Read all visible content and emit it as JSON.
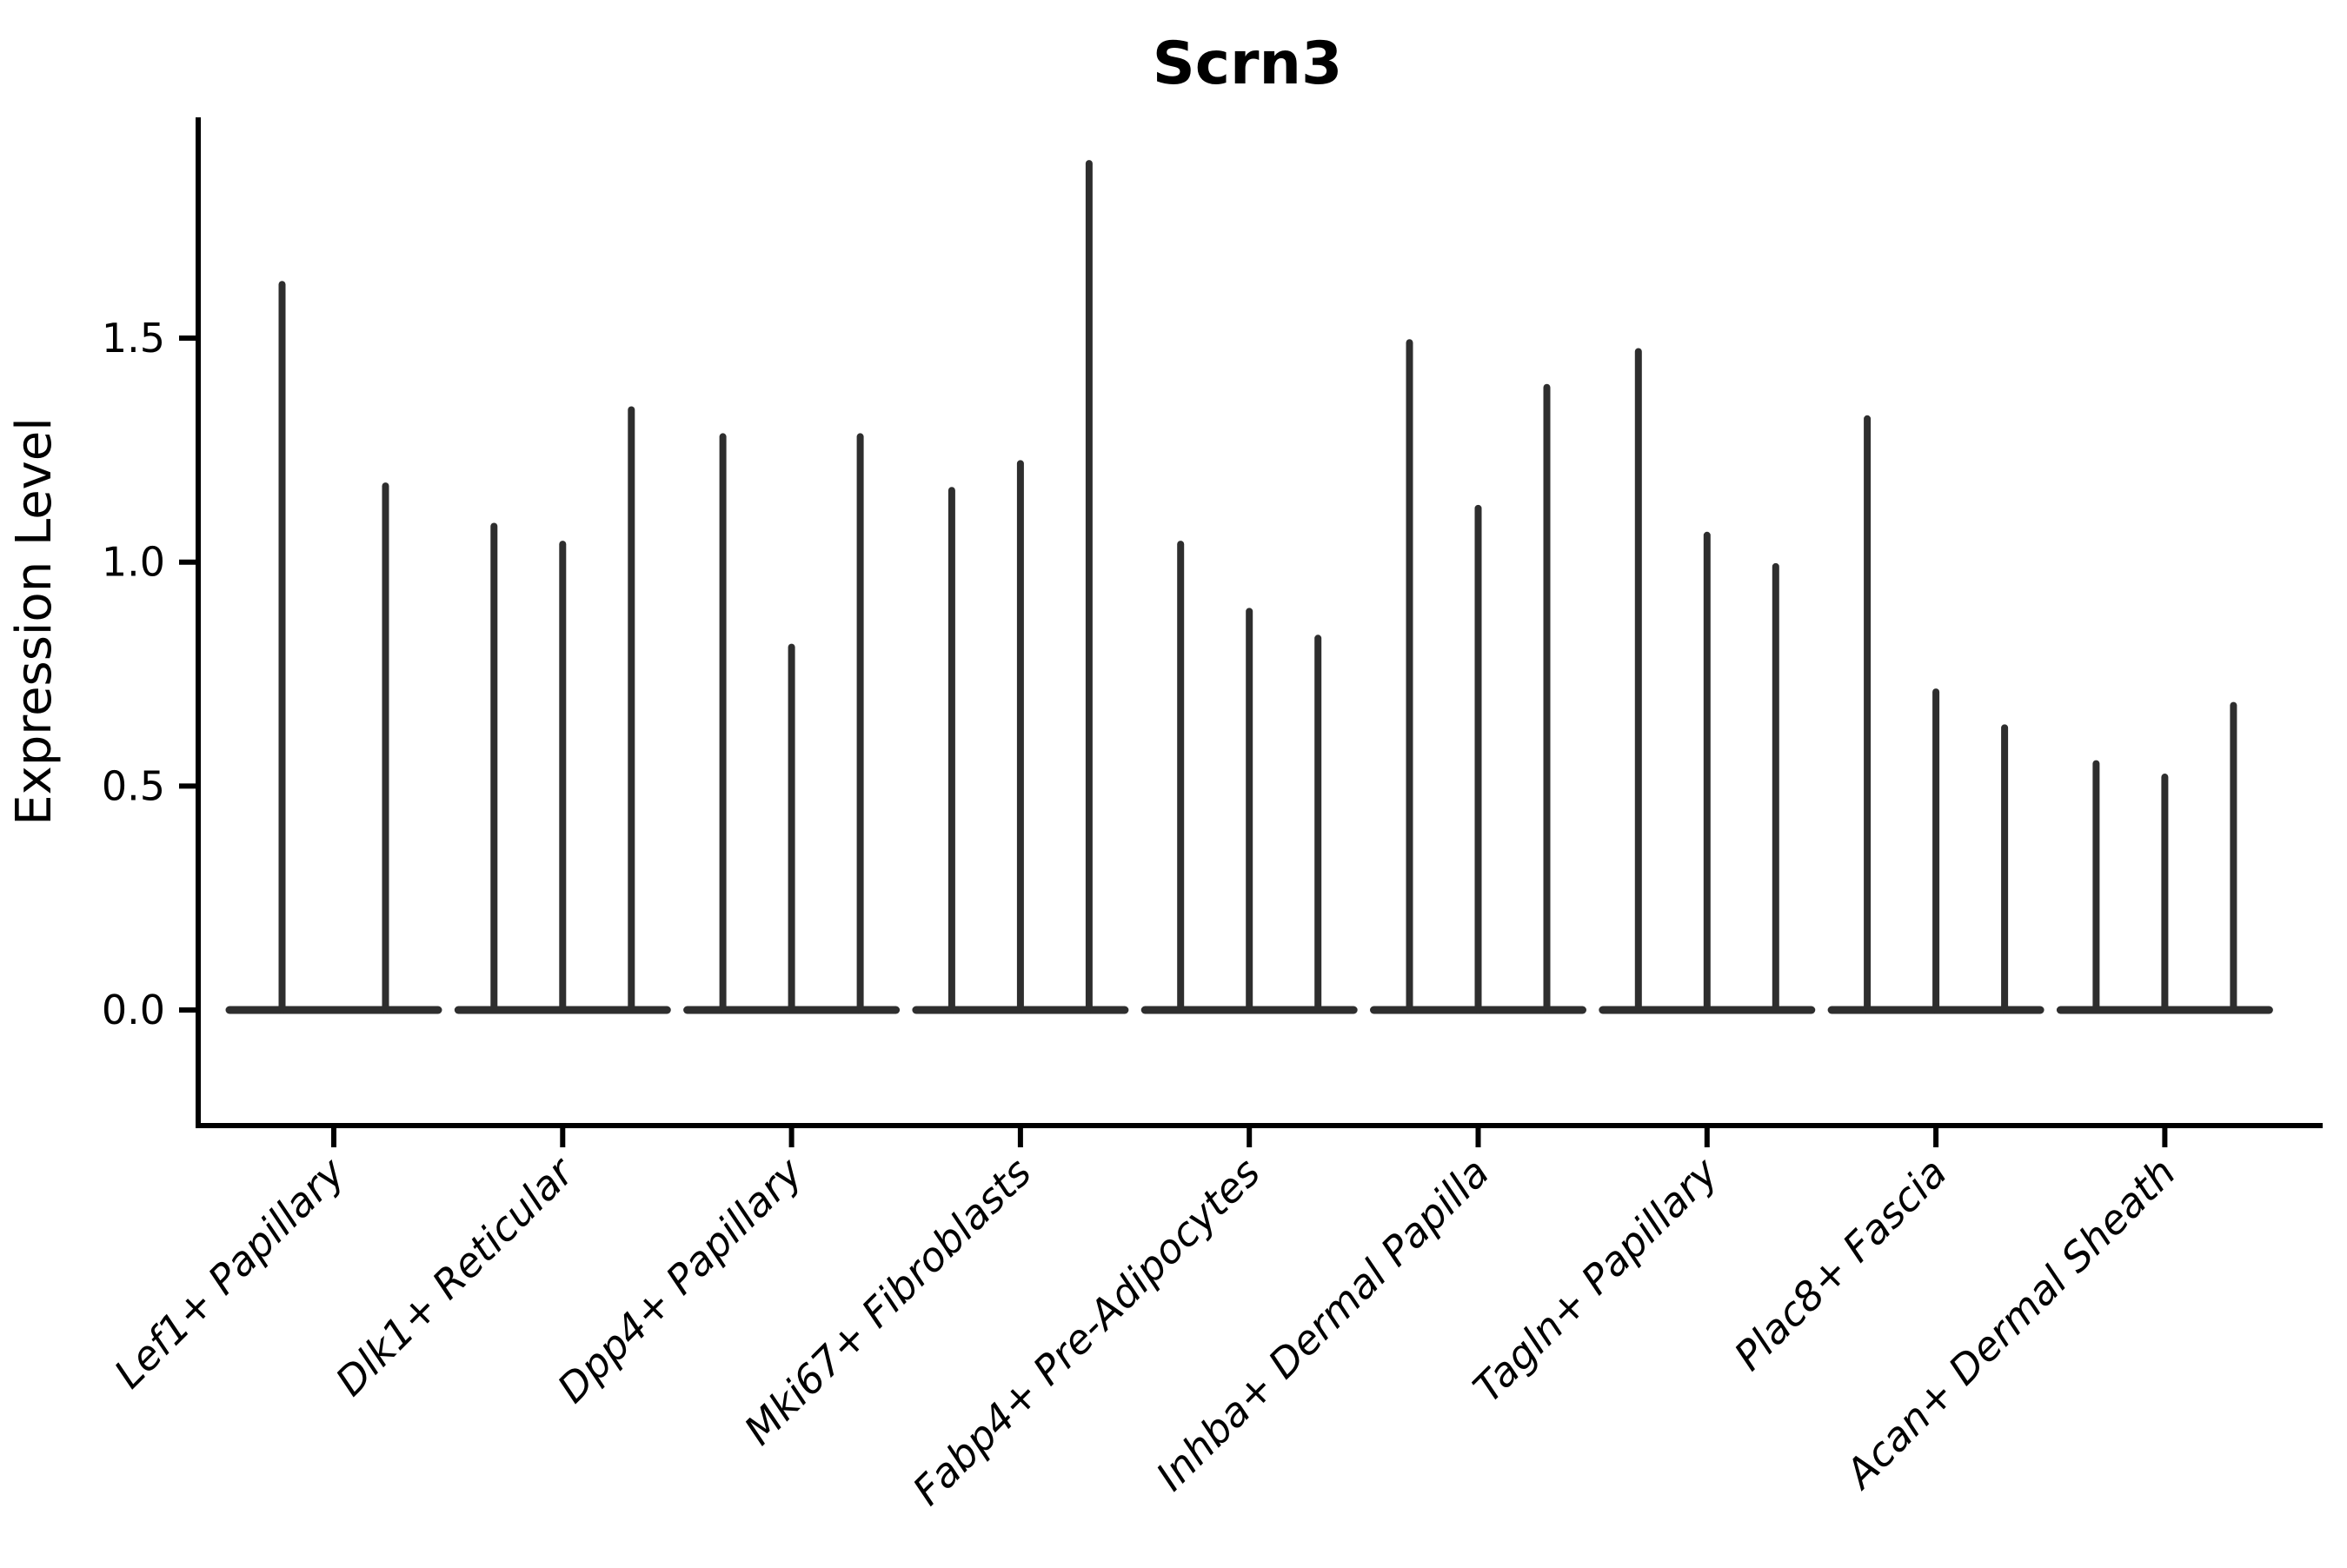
{
  "chart_data": {
    "type": "violin",
    "title": "Scrn3",
    "xlabel": "",
    "ylabel": "Expression Level",
    "ytick_labels": [
      "0.0",
      "0.5",
      "1.0",
      "1.5"
    ],
    "ytick_values": [
      0.0,
      0.5,
      1.0,
      1.5
    ],
    "ylim": [
      -0.26,
      2.0
    ],
    "grid": false,
    "legend": "none",
    "categories": [
      "Lef1+ Papillary",
      "Dlk1+ Reticular",
      "Dpp4+ Papillary",
      "Mki67+ Fibroblasts",
      "Fabp4+ Pre-Adipocytes",
      "Inhba+ Dermal Papilla",
      "Tagln+ Papillary",
      "Plac8+ Fascia",
      "Acan+ Dermal Sheath"
    ],
    "violins": [
      {
        "category": "Lef1+ Papillary",
        "peaks": [
          1.62,
          1.17
        ]
      },
      {
        "category": "Dlk1+ Reticular",
        "peaks": [
          1.08,
          1.04,
          1.34
        ]
      },
      {
        "category": "Dpp4+ Papillary",
        "peaks": [
          1.28,
          0.81,
          1.28
        ]
      },
      {
        "category": "Mki67+ Fibroblasts",
        "peaks": [
          1.16,
          1.22,
          1.89
        ]
      },
      {
        "category": "Fabp4+ Pre-Adipocytes",
        "peaks": [
          1.04,
          0.89,
          0.83
        ]
      },
      {
        "category": "Inhba+ Dermal Papilla",
        "peaks": [
          1.49,
          1.12,
          1.39
        ]
      },
      {
        "category": "Tagln+ Papillary",
        "peaks": [
          1.47,
          1.06,
          0.99
        ]
      },
      {
        "category": "Plac8+ Fascia",
        "peaks": [
          1.32,
          0.71,
          0.63
        ]
      },
      {
        "category": "Acan+ Dermal Sheath",
        "peaks": [
          0.55,
          0.52,
          0.68
        ]
      }
    ],
    "colors": {
      "violin": "#2e2e2e",
      "axis": "#000000",
      "text": "#000000",
      "background": "#ffffff"
    }
  }
}
